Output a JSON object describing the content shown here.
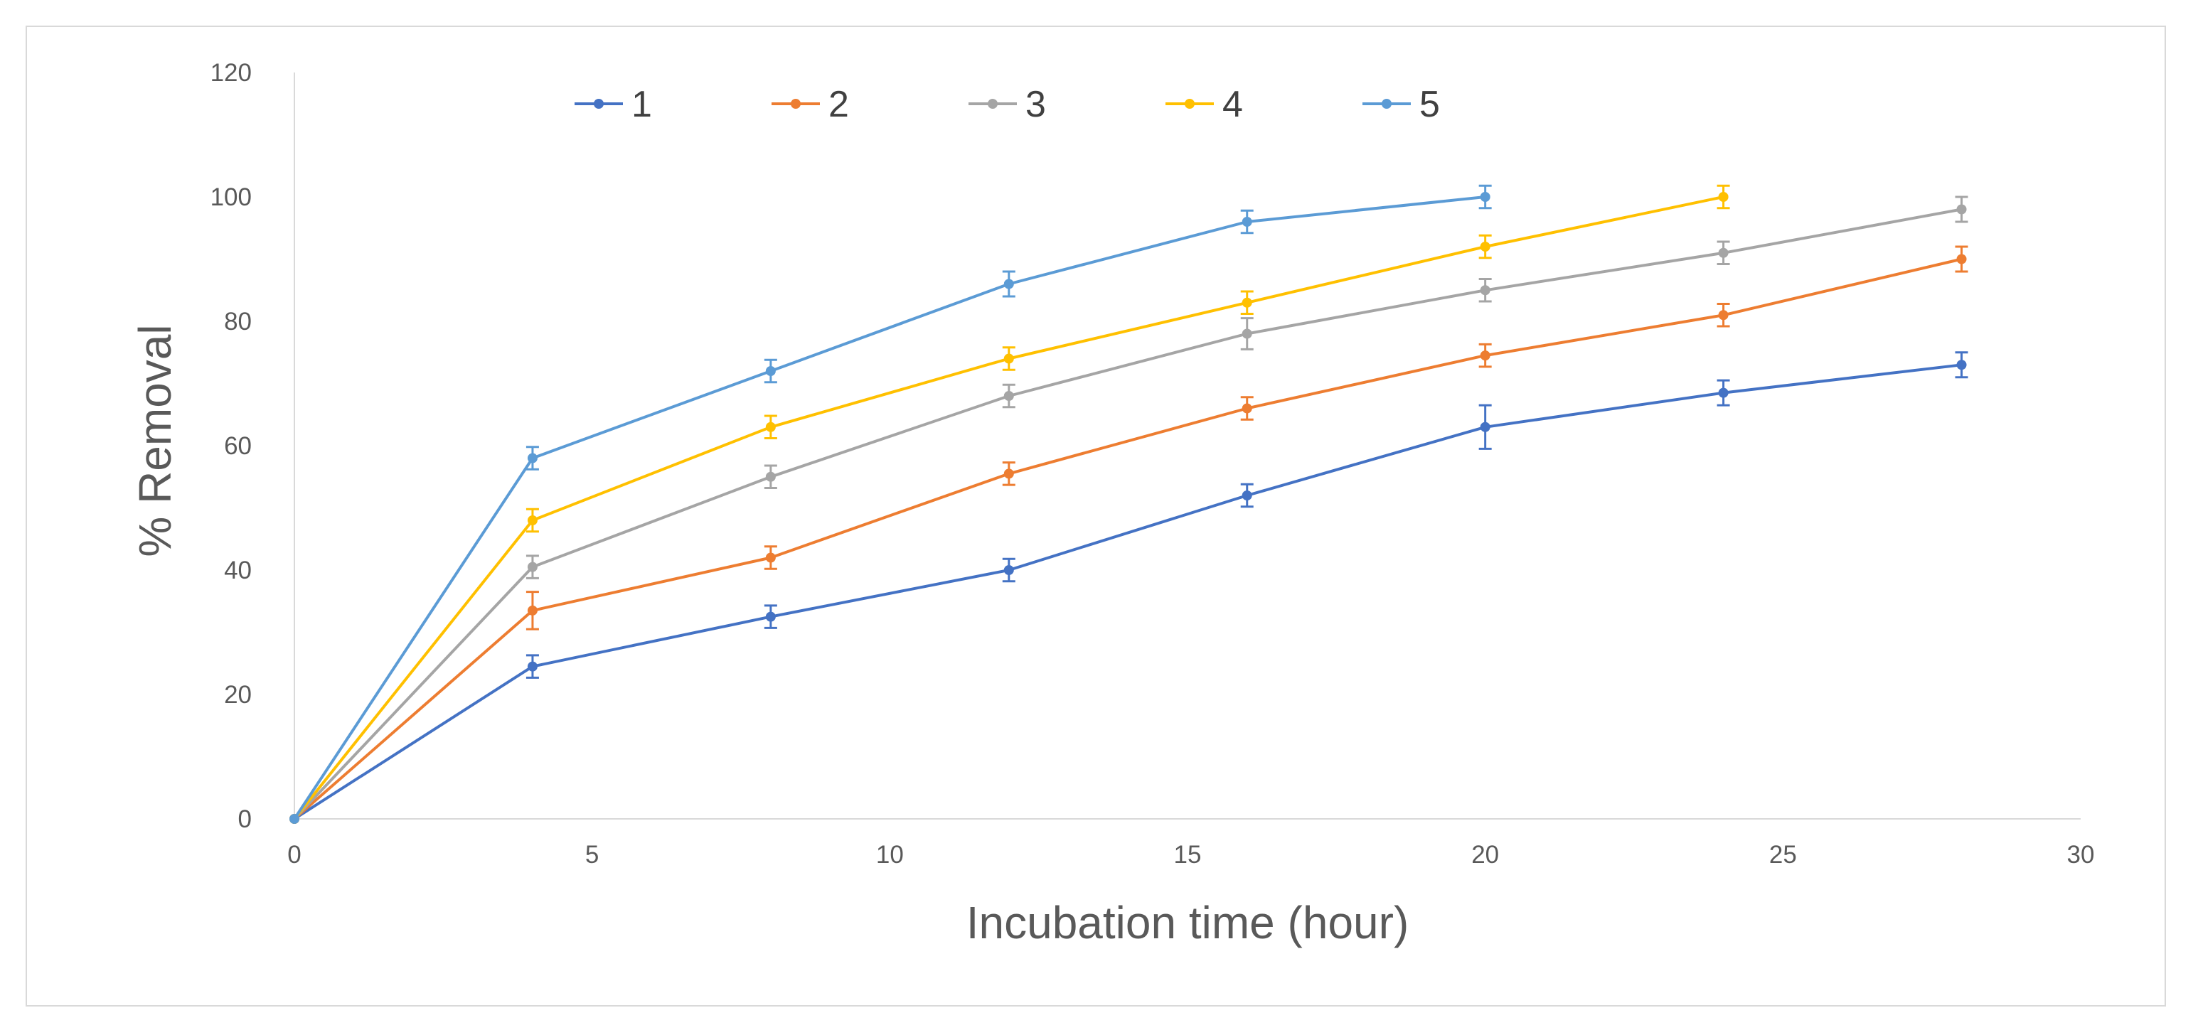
{
  "chart_data": {
    "type": "line",
    "title": "",
    "xlabel": "Incubation time (hour)",
    "ylabel": "% Removal",
    "xlim": [
      0,
      30
    ],
    "ylim": [
      0,
      120
    ],
    "x_ticks": [
      0,
      5,
      10,
      15,
      20,
      25,
      30
    ],
    "y_ticks": [
      0,
      20,
      40,
      60,
      80,
      100,
      120
    ],
    "grid": false,
    "legend_position": "top",
    "series": [
      {
        "name": "1",
        "color": "#4472c4",
        "x": [
          0,
          4,
          8,
          12,
          16,
          20,
          24,
          28
        ],
        "y": [
          0,
          24.5,
          32.5,
          40,
          52,
          63,
          68.5,
          73
        ],
        "err": [
          0,
          1.8,
          1.8,
          1.8,
          1.8,
          3.5,
          2.0,
          2.0
        ]
      },
      {
        "name": "2",
        "color": "#ed7d31",
        "x": [
          0,
          4,
          8,
          12,
          16,
          20,
          24,
          28
        ],
        "y": [
          0,
          33.5,
          42,
          55.5,
          66,
          74.5,
          81,
          90
        ],
        "err": [
          0,
          3.0,
          1.8,
          1.8,
          1.8,
          1.8,
          1.8,
          2.0
        ]
      },
      {
        "name": "3",
        "color": "#a5a5a5",
        "x": [
          0,
          4,
          8,
          12,
          16,
          20,
          24,
          28
        ],
        "y": [
          0,
          40.5,
          55,
          68,
          78,
          85,
          91,
          98
        ],
        "err": [
          0,
          1.8,
          1.8,
          1.8,
          2.5,
          1.8,
          1.8,
          2.0
        ]
      },
      {
        "name": "4",
        "color": "#ffc000",
        "x": [
          0,
          4,
          8,
          12,
          16,
          20,
          24
        ],
        "y": [
          0,
          48,
          63,
          74,
          83,
          92,
          100
        ],
        "err": [
          0,
          1.8,
          1.8,
          1.8,
          1.8,
          1.8,
          1.8
        ]
      },
      {
        "name": "5",
        "color": "#5b9bd5",
        "x": [
          0,
          4,
          8,
          12,
          16,
          20
        ],
        "y": [
          0,
          58,
          72,
          86,
          96,
          100
        ],
        "err": [
          0,
          1.8,
          1.8,
          2.0,
          1.8,
          1.8
        ]
      }
    ]
  }
}
